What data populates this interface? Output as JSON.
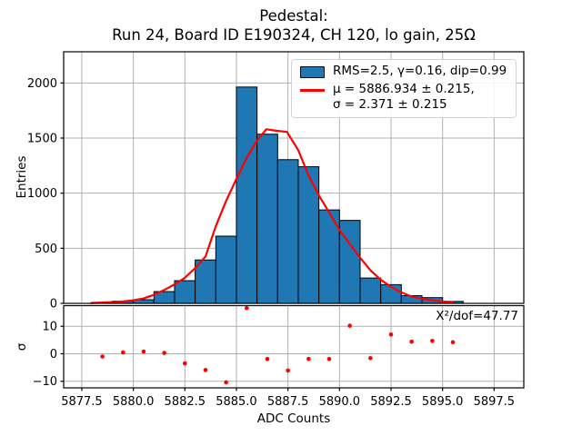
{
  "chart_data": {
    "type": "bar",
    "title_line1": "Pedestal:",
    "title_line2": "Run 24, Board ID E190324, CH 120, lo gain, 25Ω",
    "colors": {
      "bar_fill": "#1f77b4",
      "bar_edge": "#000000",
      "fit_line": "#ff0000",
      "residual_dot": "#ff0000",
      "grid": "#b0b0b0",
      "spine": "#000000",
      "legend_border": "#d2d2d2"
    },
    "main_panel": {
      "ylabel": "Entries",
      "ylim": [
        0,
        2283
      ],
      "yticks": [
        0,
        500,
        1000,
        1500,
        2000
      ],
      "xlim": [
        5876.62,
        5898.94
      ],
      "grid": true,
      "bins": {
        "bin_width": 1,
        "left_edges": [
          5878,
          5879,
          5880,
          5881,
          5882,
          5883,
          5884,
          5885,
          5886,
          5887,
          5888,
          5889,
          5890,
          5891,
          5892,
          5893,
          5894,
          5895
        ],
        "counts": [
          5,
          20,
          33,
          107,
          206,
          394,
          610,
          1963,
          1535,
          1304,
          1240,
          848,
          753,
          230,
          170,
          70,
          52,
          18
        ]
      },
      "fit_curve": {
        "points": [
          [
            5877.95,
            3
          ],
          [
            5878.5,
            8
          ],
          [
            5879.0,
            12
          ],
          [
            5879.5,
            18
          ],
          [
            5880.0,
            28
          ],
          [
            5880.5,
            45
          ],
          [
            5881.0,
            78
          ],
          [
            5881.5,
            122
          ],
          [
            5882.0,
            172
          ],
          [
            5882.5,
            232
          ],
          [
            5883.0,
            320
          ],
          [
            5883.5,
            425
          ],
          [
            5884.0,
            700
          ],
          [
            5884.5,
            930
          ],
          [
            5885.0,
            1130
          ],
          [
            5885.5,
            1320
          ],
          [
            5886.0,
            1478
          ],
          [
            5886.45,
            1580
          ],
          [
            5886.95,
            1566
          ],
          [
            5887.45,
            1556
          ],
          [
            5888.0,
            1390
          ],
          [
            5888.5,
            1160
          ],
          [
            5889.0,
            980
          ],
          [
            5889.5,
            825
          ],
          [
            5890.0,
            665
          ],
          [
            5890.5,
            540
          ],
          [
            5891.0,
            415
          ],
          [
            5891.5,
            300
          ],
          [
            5892.0,
            215
          ],
          [
            5892.5,
            150
          ],
          [
            5893.0,
            100
          ],
          [
            5893.5,
            62
          ],
          [
            5894.0,
            42
          ],
          [
            5894.5,
            28
          ],
          [
            5895.0,
            18
          ],
          [
            5895.5,
            12
          ]
        ]
      }
    },
    "legend": {
      "hist_label": "RMS=2.5, γ=0.16, dip=0.99",
      "fit_label_line1": "μ = 5886.934 ± 0.215,",
      "fit_label_line2": "σ = 2.371 ± 0.215"
    },
    "residual_panel": {
      "ylabel": "σ",
      "xlabel": "ADC Counts",
      "ylim": [
        -12.4,
        17.5
      ],
      "yticks": [
        10,
        0,
        -10
      ],
      "xticks": [
        5877.5,
        5880.0,
        5882.5,
        5885.0,
        5887.5,
        5890.0,
        5892.5,
        5895.0,
        5897.5
      ],
      "annotation": "X²/dof=47.77",
      "points": [
        [
          5878.5,
          -1.0
        ],
        [
          5879.5,
          0.5
        ],
        [
          5880.5,
          0.8
        ],
        [
          5881.5,
          0.3
        ],
        [
          5882.5,
          -3.5
        ],
        [
          5883.5,
          -5.9
        ],
        [
          5884.5,
          -10.4
        ],
        [
          5885.5,
          16.6
        ],
        [
          5886.5,
          -1.9
        ],
        [
          5887.5,
          -6.1
        ],
        [
          5888.5,
          -1.9
        ],
        [
          5889.5,
          -1.9
        ],
        [
          5890.5,
          10.2
        ],
        [
          5891.5,
          -1.6
        ],
        [
          5892.5,
          7.0
        ],
        [
          5893.5,
          4.4
        ],
        [
          5894.5,
          4.7
        ],
        [
          5895.5,
          4.2
        ]
      ]
    }
  }
}
